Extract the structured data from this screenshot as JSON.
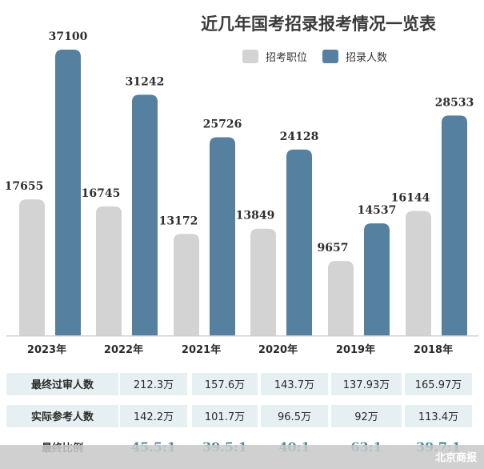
{
  "chart_data": {
    "type": "bar",
    "title": "近几年国考招录报考情况一览表",
    "categories": [
      "2023年",
      "2022年",
      "2021年",
      "2020年",
      "2019年",
      "2018年"
    ],
    "series": [
      {
        "name": "招考职位",
        "values": [
          17655,
          16745,
          13172,
          13849,
          9657,
          16144
        ],
        "color": "#d3d3d3"
      },
      {
        "name": "招录人数",
        "values": [
          37100,
          31242,
          25726,
          24128,
          14537,
          28533
        ],
        "color": "#55809f"
      }
    ],
    "legend_position": "top-right",
    "grid": false
  },
  "table": {
    "rows": [
      {
        "label": "最终过审人数",
        "values": [
          "212.3万",
          "157.6万",
          "143.7万",
          "137.93万",
          "165.97万"
        ]
      },
      {
        "label": "实际参考人数",
        "values": [
          "142.2万",
          "101.7万",
          "96.5万",
          "92万",
          "113.4万"
        ]
      },
      {
        "label": "最终比例",
        "values": [
          "45.5:1",
          "39.5:1",
          "40:1",
          "63:1",
          "39.7:1"
        ]
      }
    ]
  },
  "watermark": "北京商报",
  "colors": {
    "row_bg": "#e6f0f2",
    "ratio_text": "#4f8a9a",
    "footer_bg": "#c8c8c8"
  }
}
